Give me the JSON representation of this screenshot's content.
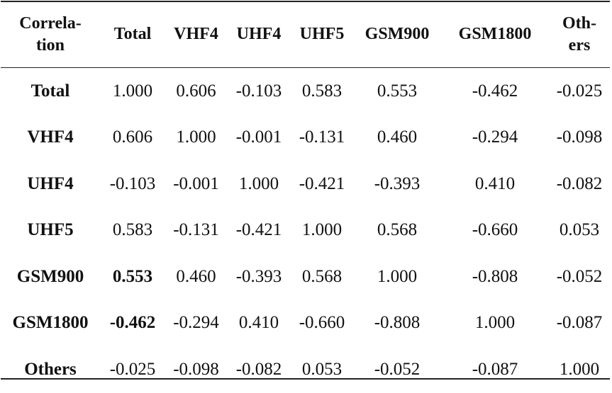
{
  "header": {
    "corner_line1": "Correla-",
    "corner_line2": "tion",
    "cols": [
      "Total",
      "VHF4",
      "UHF4",
      "UHF5",
      "GSM900",
      "GSM1800"
    ],
    "last_line1": "Oth-",
    "last_line2": "ers"
  },
  "rows": [
    {
      "label": "Total",
      "values": [
        "1.000",
        "0.606",
        "-0.103",
        "0.583",
        "0.553",
        "-0.462",
        "-0.025"
      ]
    },
    {
      "label": "VHF4",
      "values": [
        "0.606",
        "1.000",
        "-0.001",
        "-0.131",
        "0.460",
        "-0.294",
        "-0.098"
      ]
    },
    {
      "label": "UHF4",
      "values": [
        "-0.103",
        "-0.001",
        "1.000",
        "-0.421",
        "-0.393",
        "0.410",
        "-0.082"
      ]
    },
    {
      "label": "UHF5",
      "values": [
        "0.583",
        "-0.131",
        "-0.421",
        "1.000",
        "0.568",
        "-0.660",
        "0.053"
      ]
    },
    {
      "label": "GSM900",
      "values": [
        "0.553",
        "0.460",
        "-0.393",
        "0.568",
        "1.000",
        "-0.808",
        "-0.052"
      ]
    },
    {
      "label": "GSM1800",
      "values": [
        "-0.462",
        "-0.294",
        "0.410",
        "-0.660",
        "-0.808",
        "1.000",
        "-0.087"
      ]
    },
    {
      "label": "Others",
      "values": [
        "-0.025",
        "-0.098",
        "-0.082",
        "0.053",
        "-0.052",
        "-0.087",
        "1.000"
      ]
    }
  ]
}
